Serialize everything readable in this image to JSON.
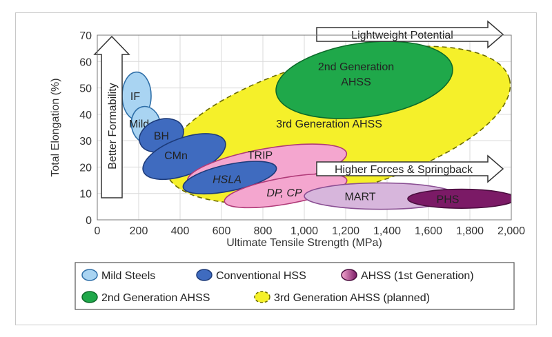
{
  "chart_data": {
    "type": "scatter",
    "xlabel": "Ultimate Tensile Strength (MPa)",
    "ylabel": "Total Elongation (%)",
    "xlim": [
      0,
      2000
    ],
    "ylim": [
      0,
      70
    ],
    "x_ticks": [
      "0",
      "200",
      "400",
      "600",
      "800",
      "1,000",
      "1,200",
      "1,400",
      "1,600",
      "1,800",
      "2,000"
    ],
    "y_ticks": [
      "0",
      "10",
      "20",
      "30",
      "40",
      "50",
      "60",
      "70"
    ],
    "grid": true,
    "regions": [
      {
        "label": "3rd Generation AHSS",
        "category": "3rd Generation AHSS (planned)",
        "cx": 1160,
        "cy": 36,
        "rx": 860,
        "ry": 25,
        "rotation_deg": -15
      },
      {
        "label": "2nd Generation AHSS",
        "category": "2nd Generation AHSS",
        "cx": 1290,
        "cy": 53,
        "rx": 430,
        "ry": 14,
        "rotation_deg": -8
      },
      {
        "label": "IF",
        "category": "Mild Steels",
        "cx": 190,
        "cy": 47,
        "rx": 70,
        "ry": 9,
        "rotation_deg": 0
      },
      {
        "label": "Mild",
        "category": "Mild Steels",
        "cx": 235,
        "cy": 36,
        "rx": 70,
        "ry": 7,
        "rotation_deg": -10
      },
      {
        "label": "BH",
        "category": "Conventional HSS",
        "cx": 310,
        "cy": 32,
        "rx": 110,
        "ry": 6,
        "rotation_deg": -20
      },
      {
        "label": "CMn",
        "category": "Conventional HSS",
        "cx": 420,
        "cy": 24,
        "rx": 210,
        "ry": 7,
        "rotation_deg": -20
      },
      {
        "label": "TRIP",
        "category": "AHSS (1st Generation)",
        "cx": 820,
        "cy": 20,
        "rx": 390,
        "ry": 7,
        "rotation_deg": -10
      },
      {
        "label": "HSLA",
        "category": "Conventional HSS",
        "cx": 640,
        "cy": 16,
        "rx": 230,
        "ry": 5,
        "rotation_deg": -12
      },
      {
        "label": "DP, CP",
        "category": "AHSS (1st Generation)",
        "cx": 910,
        "cy": 11,
        "rx": 300,
        "ry": 5,
        "rotation_deg": -10
      },
      {
        "label": "MART",
        "category": "AHSS (1st Generation)",
        "cx": 1370,
        "cy": 9,
        "rx": 370,
        "ry": 5,
        "rotation_deg": 0
      },
      {
        "label": "PHS",
        "category": "AHSS (1st Generation)",
        "cx": 1760,
        "cy": 8,
        "rx": 260,
        "ry": 3.6,
        "rotation_deg": 0
      }
    ],
    "annotations": {
      "better_formability": "Better Formability",
      "lightweight_potential": "Lightweight Potential",
      "higher_forces": "Higher Forces & Springback"
    },
    "legend": [
      {
        "label": "Mild Steels",
        "swatch": "mild"
      },
      {
        "label": "Conventional HSS",
        "swatch": "hss"
      },
      {
        "label": "AHSS (1st Generation)",
        "swatch": "ahss1"
      },
      {
        "label": "2nd Generation AHSS",
        "swatch": "gen2"
      },
      {
        "label": "3rd Generation AHSS (planned)",
        "swatch": "gen3"
      }
    ],
    "legend_placement": "bottom"
  },
  "colors": {
    "mild_fill": "#a9d4f2",
    "mild_stroke": "#2f6fa8",
    "hss_fill": "#3f6bbf",
    "hss_stroke": "#1d3b7a",
    "pink_fill": "#f4a6cf",
    "pink_stroke": "#b03a78",
    "mart_fill": "#d7b6dc",
    "mart_stroke": "#8a4f93",
    "phs_fill": "#7b1a66",
    "phs_stroke": "#4a0d3e",
    "gen2_fill": "#1fa84a",
    "gen2_stroke": "#0d6b2a",
    "gen3_fill": "#f5f02a",
    "gen3_stroke": "#6b6b00"
  }
}
